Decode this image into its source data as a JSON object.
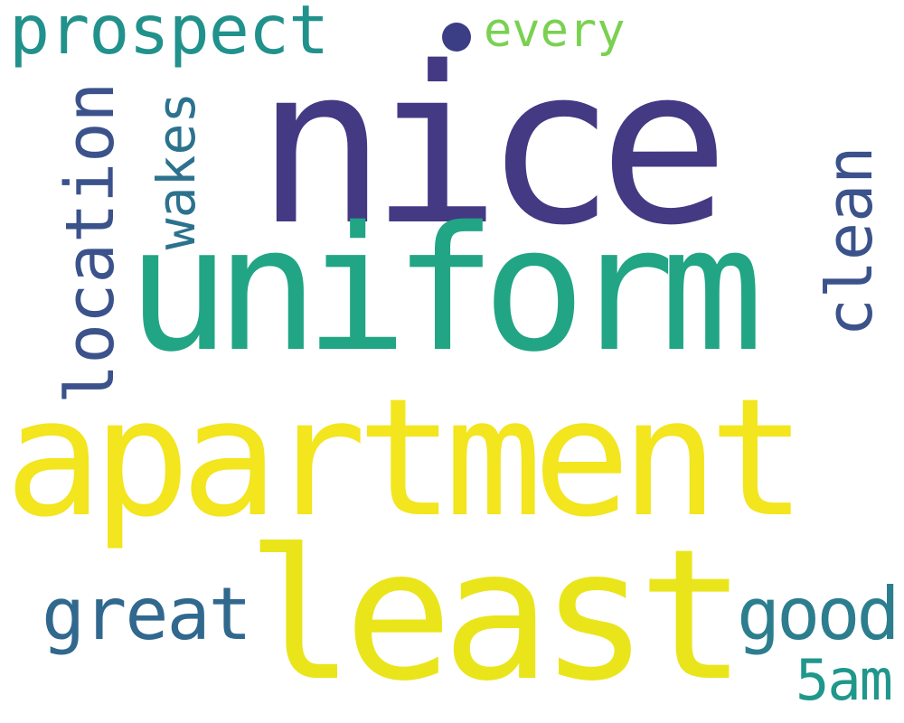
{
  "words": {
    "nice": {
      "text": "nice",
      "color": "#443983"
    },
    "uniform": {
      "text": "uniform",
      "color": "#21a585"
    },
    "apartment": {
      "text": "apartment",
      "color": "#f3e51e"
    },
    "least": {
      "text": "least",
      "color": "#e9e51a"
    },
    "prospect": {
      "text": "prospect",
      "color": "#21918c"
    },
    "every": {
      "text": "every",
      "color": "#7ad151"
    },
    "location": {
      "text": "location",
      "color": "#3b528b"
    },
    "wakes": {
      "text": "wakes",
      "color": "#2c728e"
    },
    "clean": {
      "text": "clean",
      "color": "#3b528b"
    },
    "great": {
      "text": "great",
      "color": "#31688e"
    },
    "good": {
      "text": "good",
      "color": "#2c7e8e"
    },
    "fiveam": {
      "text": "5am",
      "color": "#1f978b"
    }
  },
  "bullet": {
    "color": "#3b3e85"
  }
}
